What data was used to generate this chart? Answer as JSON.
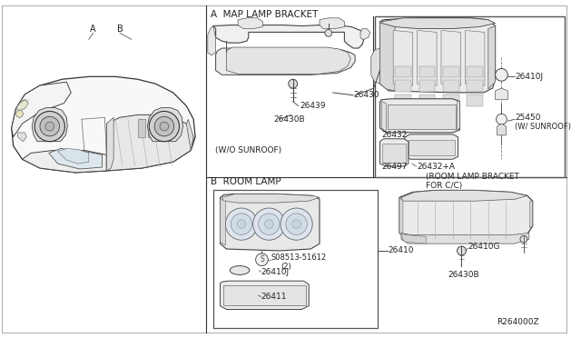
{
  "bg_color": "#ffffff",
  "line_color": "#333333",
  "text_color": "#222222",
  "section_a_label": "A  MAP LAMP BRACKET",
  "section_b_label": "B  ROOM LAMP",
  "wo_sunroof_label": "(W/O SUNROOF)",
  "w_sunroof_label": "(W/ SUNROOF)",
  "room_lamp_bracket_label": "(ROOM LAMP BRACKET\nFOR C/C)",
  "ref_code": "R264000Z",
  "label_26430": "26430",
  "label_26439": "26439",
  "label_26430B": "26430B",
  "label_26410J": "26410J",
  "label_25450": "25450",
  "label_26432": "26432",
  "label_26497": "26497",
  "label_26432A": "26432+A",
  "label_26410": "26410",
  "label_26410G": "26410G",
  "label_26430B2": "26430B",
  "label_26410J2": "26410J",
  "label_26411": "26411",
  "label_S08513": "S08513-51612",
  "label_S08513b": "(2)",
  "label_A": "A",
  "label_B": "B"
}
